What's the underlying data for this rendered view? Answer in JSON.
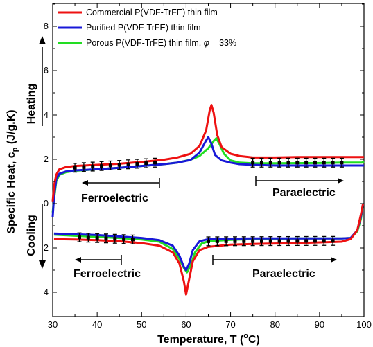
{
  "chart_data": {
    "type": "line",
    "xlabel": "Temperature, T (",
    "xlabel_unit": "C)",
    "xlabel_degree": "o",
    "ylabel": "Specific Heat, c",
    "ylabel_sub": "p",
    "ylabel_unit": " (J/g.K)",
    "xlim": [
      30,
      100
    ],
    "ylim_heating": [
      0,
      9
    ],
    "ylim_cooling": [
      0,
      5
    ],
    "x_ticks": [
      "30",
      "40",
      "50",
      "60",
      "70",
      "80",
      "90",
      "100"
    ],
    "y_ticks_heating": [
      "0",
      "2",
      "4",
      "6",
      "8"
    ],
    "y_ticks_cooling": [
      "2",
      "4"
    ],
    "grid": false,
    "legend_position": "top-left",
    "legend": [
      {
        "text": "Commercial P(VDF-TrFE) thin film",
        "color": "#ee1111"
      },
      {
        "text": "Purified P(VDF-TrFE) thin film",
        "color": "#1818d8"
      },
      {
        "text": "Porous P(VDF-TrFE) thin film, ",
        "phi": "φ",
        "phi_value": " = 33%",
        "color": "#22dd22"
      }
    ],
    "side_labels": {
      "heating": "Heating",
      "cooling": "Cooling"
    },
    "annotations": {
      "heating_ferro": "Ferroelectric",
      "heating_para": "Paraelectric",
      "cooling_ferro": "Ferroelectric",
      "cooling_para": "Paraelectric"
    },
    "series": [
      {
        "name": "Commercial P(VDF-TrFE) thin film",
        "color": "#ee1111",
        "heating": [
          [
            30,
            0.1
          ],
          [
            30.3,
            0.8
          ],
          [
            30.8,
            1.3
          ],
          [
            31.5,
            1.55
          ],
          [
            33,
            1.65
          ],
          [
            35,
            1.7
          ],
          [
            40,
            1.75
          ],
          [
            45,
            1.8
          ],
          [
            50,
            1.88
          ],
          [
            55,
            1.98
          ],
          [
            58,
            2.08
          ],
          [
            61,
            2.25
          ],
          [
            63,
            2.6
          ],
          [
            64.5,
            3.3
          ],
          [
            65.3,
            4.2
          ],
          [
            65.7,
            4.45
          ],
          [
            66.2,
            4.1
          ],
          [
            67,
            3.1
          ],
          [
            68,
            2.55
          ],
          [
            70,
            2.25
          ],
          [
            72,
            2.15
          ],
          [
            75,
            2.08
          ],
          [
            80,
            2.08
          ],
          [
            85,
            2.1
          ],
          [
            90,
            2.1
          ],
          [
            95,
            2.1
          ],
          [
            99.5,
            2.1
          ],
          [
            100,
            2.1
          ]
        ],
        "cooling": [
          [
            30.3,
            1.6
          ],
          [
            35,
            1.62
          ],
          [
            40,
            1.65
          ],
          [
            45,
            1.7
          ],
          [
            50,
            1.78
          ],
          [
            54,
            1.9
          ],
          [
            57,
            2.2
          ],
          [
            58.5,
            2.7
          ],
          [
            59.5,
            3.5
          ],
          [
            60,
            4.1
          ],
          [
            60.5,
            3.6
          ],
          [
            61.5,
            2.6
          ],
          [
            63,
            2.1
          ],
          [
            65,
            1.95
          ],
          [
            70,
            1.85
          ],
          [
            75,
            1.82
          ],
          [
            80,
            1.8
          ],
          [
            85,
            1.78
          ],
          [
            90,
            1.75
          ],
          [
            95,
            1.72
          ],
          [
            97,
            1.6
          ],
          [
            98.5,
            1.2
          ],
          [
            99.3,
            0.5
          ],
          [
            99.8,
            0
          ]
        ]
      },
      {
        "name": "Purified P(VDF-TrFE) thin film",
        "color": "#1818d8",
        "heating": [
          [
            30,
            -0.6
          ],
          [
            30.3,
            0.3
          ],
          [
            30.8,
            1.1
          ],
          [
            31.5,
            1.35
          ],
          [
            33,
            1.45
          ],
          [
            35,
            1.5
          ],
          [
            40,
            1.55
          ],
          [
            45,
            1.62
          ],
          [
            50,
            1.7
          ],
          [
            55,
            1.78
          ],
          [
            58,
            1.85
          ],
          [
            61,
            1.97
          ],
          [
            63,
            2.3
          ],
          [
            64.5,
            2.85
          ],
          [
            65,
            3.0
          ],
          [
            65.7,
            2.7
          ],
          [
            66.5,
            2.2
          ],
          [
            68,
            1.95
          ],
          [
            70,
            1.85
          ],
          [
            72,
            1.78
          ],
          [
            75,
            1.75
          ],
          [
            80,
            1.72
          ],
          [
            90,
            1.72
          ],
          [
            95,
            1.72
          ],
          [
            99.5,
            1.72
          ],
          [
            100,
            1.72
          ]
        ],
        "cooling": [
          [
            30.3,
            1.35
          ],
          [
            35,
            1.38
          ],
          [
            40,
            1.42
          ],
          [
            45,
            1.48
          ],
          [
            50,
            1.55
          ],
          [
            54,
            1.65
          ],
          [
            57,
            1.9
          ],
          [
            58.5,
            2.35
          ],
          [
            59.5,
            2.85
          ],
          [
            60,
            3.0
          ],
          [
            60.7,
            2.7
          ],
          [
            61.5,
            2.1
          ],
          [
            63,
            1.7
          ],
          [
            65,
            1.6
          ],
          [
            70,
            1.58
          ],
          [
            75,
            1.57
          ],
          [
            80,
            1.57
          ],
          [
            85,
            1.57
          ],
          [
            90,
            1.57
          ],
          [
            95,
            1.57
          ],
          [
            97,
            1.55
          ],
          [
            98.5,
            1.2
          ],
          [
            99.3,
            0.6
          ],
          [
            99.8,
            0
          ]
        ]
      },
      {
        "name": "Porous P(VDF-TrFE) thin film, φ = 33%",
        "color": "#22dd22",
        "heating": [
          [
            30,
            -0.4
          ],
          [
            30.3,
            0.2
          ],
          [
            30.8,
            1.0
          ],
          [
            31.5,
            1.3
          ],
          [
            33,
            1.42
          ],
          [
            35,
            1.48
          ],
          [
            40,
            1.55
          ],
          [
            45,
            1.62
          ],
          [
            50,
            1.7
          ],
          [
            55,
            1.78
          ],
          [
            58,
            1.85
          ],
          [
            61,
            1.98
          ],
          [
            63,
            2.15
          ],
          [
            65,
            2.5
          ],
          [
            66.3,
            2.85
          ],
          [
            66.8,
            2.95
          ],
          [
            67.5,
            2.7
          ],
          [
            68.5,
            2.25
          ],
          [
            70,
            1.95
          ],
          [
            72,
            1.85
          ],
          [
            75,
            1.82
          ],
          [
            80,
            1.82
          ],
          [
            90,
            1.83
          ],
          [
            95,
            1.85
          ],
          [
            99.5,
            1.85
          ],
          [
            100,
            1.9
          ]
        ],
        "cooling": [
          [
            30.3,
            1.4
          ],
          [
            35,
            1.45
          ],
          [
            40,
            1.5
          ],
          [
            45,
            1.55
          ],
          [
            50,
            1.62
          ],
          [
            54,
            1.72
          ],
          [
            57,
            2.05
          ],
          [
            58.5,
            2.5
          ],
          [
            59.5,
            2.9
          ],
          [
            60.2,
            3.1
          ],
          [
            61,
            2.8
          ],
          [
            62,
            2.2
          ],
          [
            63.5,
            1.8
          ],
          [
            65,
            1.7
          ],
          [
            70,
            1.63
          ],
          [
            75,
            1.6
          ],
          [
            80,
            1.58
          ],
          [
            85,
            1.57
          ],
          [
            90,
            1.57
          ],
          [
            95,
            1.57
          ],
          [
            97,
            1.55
          ],
          [
            98.5,
            1.25
          ],
          [
            99.3,
            0.7
          ],
          [
            99.8,
            0
          ]
        ]
      }
    ],
    "errorbars": {
      "heating_left": {
        "x_start": 35,
        "x_end": 53,
        "y_start": 1.62,
        "y_end": 1.85,
        "err": 0.2
      },
      "heating_right": {
        "x_start": 75,
        "x_end": 96,
        "y": 1.85,
        "err": 0.2
      },
      "cooling_left": {
        "x_start": 36,
        "x_end": 48,
        "y_start": 1.52,
        "y_end": 1.62,
        "err": 0.2
      },
      "cooling_right": {
        "x_start": 65,
        "x_end": 94,
        "y_start": 1.7,
        "y_end": 1.68,
        "err": 0.2
      }
    }
  }
}
